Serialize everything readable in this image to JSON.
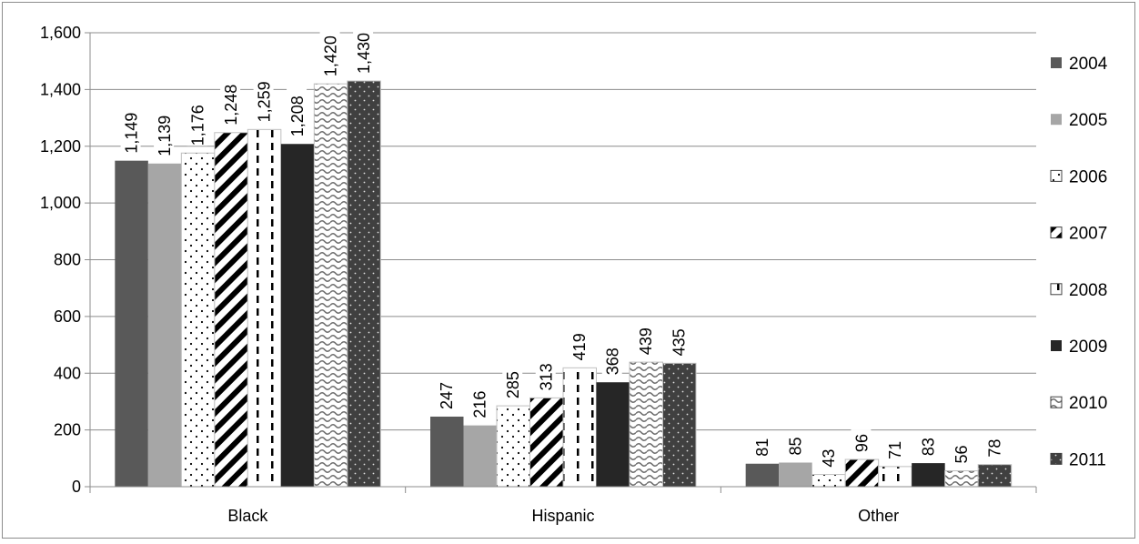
{
  "chart_data": {
    "type": "bar",
    "title": "",
    "xlabel": "",
    "ylabel": "",
    "categories": [
      "Black",
      "Hispanic",
      "Other"
    ],
    "ylim": [
      0,
      1600
    ],
    "yticks": [
      0,
      200,
      400,
      600,
      800,
      1000,
      1200,
      1400,
      1600
    ],
    "ytick_labels": [
      "0",
      "200",
      "400",
      "600",
      "800",
      "1,000",
      "1,200",
      "1,400",
      "1,600"
    ],
    "grid": true,
    "legend_position": "right",
    "series": [
      {
        "name": "2004",
        "values": [
          1149,
          247,
          81
        ],
        "labels": [
          "1,149",
          "247",
          "81"
        ],
        "pattern": "solid",
        "color": "#595959"
      },
      {
        "name": "2005",
        "values": [
          1139,
          216,
          85
        ],
        "labels": [
          "1,139",
          "216",
          "85"
        ],
        "pattern": "solid",
        "color": "#a6a6a6"
      },
      {
        "name": "2006",
        "values": [
          1176,
          285,
          43
        ],
        "labels": [
          "1,176",
          "285",
          "43"
        ],
        "pattern": "dots",
        "color": "#ffffff"
      },
      {
        "name": "2007",
        "values": [
          1248,
          313,
          96
        ],
        "labels": [
          "1,248",
          "313",
          "96"
        ],
        "pattern": "diagonal-stripes",
        "color": "#000000"
      },
      {
        "name": "2008",
        "values": [
          1259,
          419,
          71
        ],
        "labels": [
          "1,259",
          "419",
          "71"
        ],
        "pattern": "vertical-dashes",
        "color": "#000000"
      },
      {
        "name": "2009",
        "values": [
          1208,
          368,
          83
        ],
        "labels": [
          "1,208",
          "368",
          "83"
        ],
        "pattern": "solid",
        "color": "#262626"
      },
      {
        "name": "2010",
        "values": [
          1420,
          439,
          56
        ],
        "labels": [
          "1,420",
          "439",
          "56"
        ],
        "pattern": "waves",
        "color": "#7f7f7f"
      },
      {
        "name": "2011",
        "values": [
          1430,
          435,
          78
        ],
        "labels": [
          "1,430",
          "435",
          "78"
        ],
        "pattern": "dark-dots",
        "color": "#404040"
      }
    ]
  }
}
